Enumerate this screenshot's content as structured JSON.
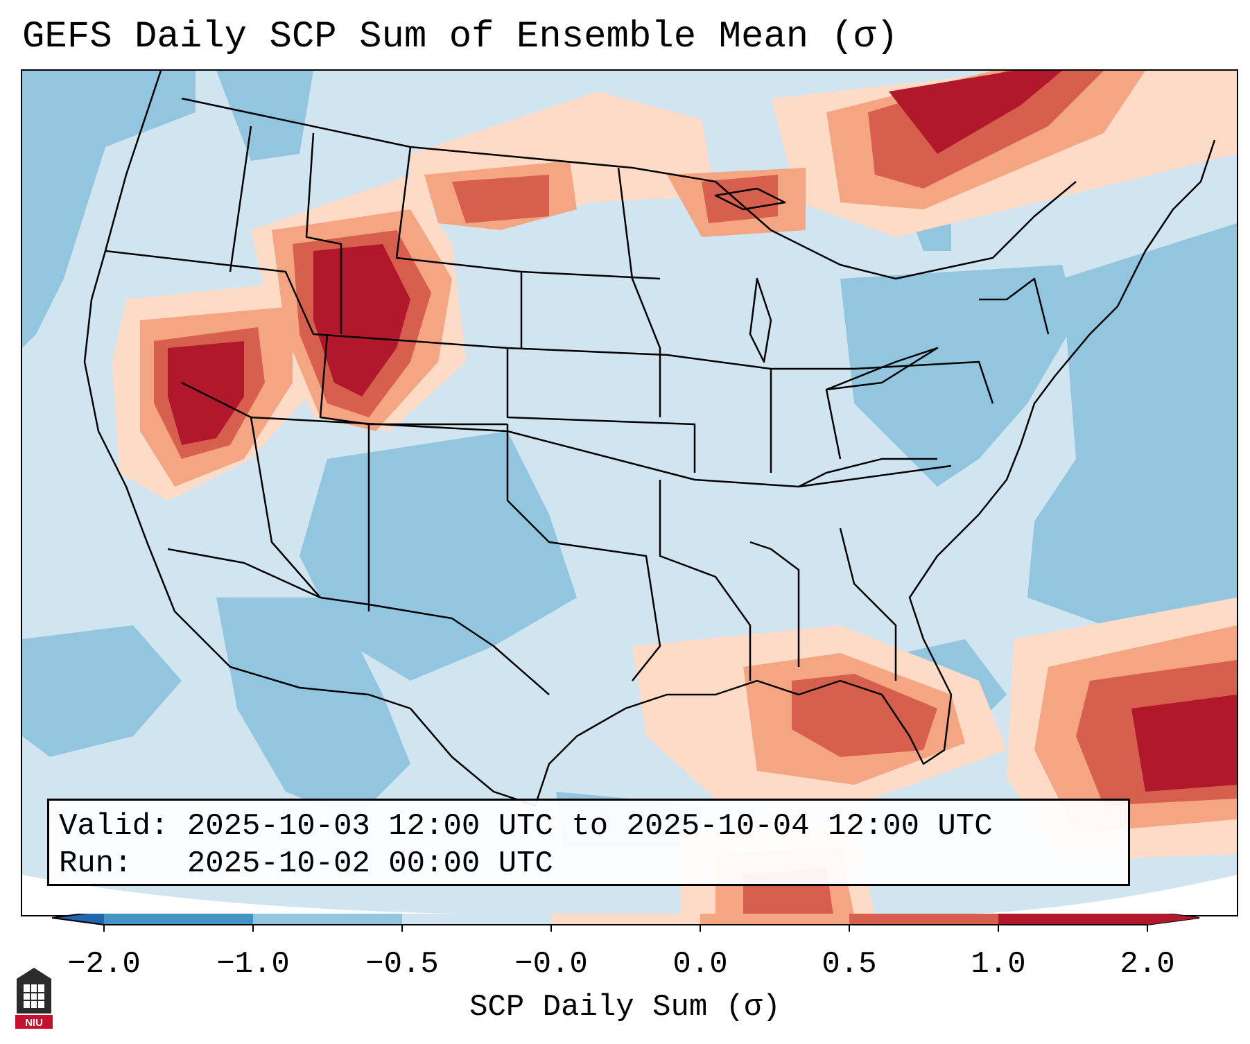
{
  "title": "GEFS Daily SCP Sum of Ensemble Mean (σ)",
  "info": {
    "valid_line": "Valid: 2025-10-03 12:00 UTC to 2025-10-04 12:00 UTC",
    "run_line": "Run:   2025-10-02 00:00 UTC"
  },
  "colorbar": {
    "label": "SCP Daily Sum (σ)",
    "ticks": [
      "−2.0",
      "−1.0",
      "−0.5",
      "−0.0",
      "0.0",
      "0.5",
      "1.0",
      "2.0"
    ],
    "bin_colors": [
      "#4393c3",
      "#92c5de",
      "#d1e5f0",
      "#fddbc7",
      "#f4a582",
      "#d6604d",
      "#b2182b"
    ],
    "extend_colors": [
      "#2166ac",
      "#b2182b"
    ]
  },
  "legend_items": [
    {
      "range": "< -2.0",
      "color": "#2166ac"
    },
    {
      "range": "-2.0 to -1.0",
      "color": "#4393c3"
    },
    {
      "range": "-1.0 to -0.5",
      "color": "#92c5de"
    },
    {
      "range": "-0.5 to 0.0",
      "color": "#d1e5f0"
    },
    {
      "range": "0.0 to 0.5",
      "color": "#fddbc7"
    },
    {
      "range": "0.5 to 1.0",
      "color": "#f4a582"
    },
    {
      "range": "1.0 to 2.0",
      "color": "#d6604d"
    },
    {
      "range": "> 2.0",
      "color": "#b2182b"
    }
  ],
  "logo": {
    "text": "NIU"
  }
}
